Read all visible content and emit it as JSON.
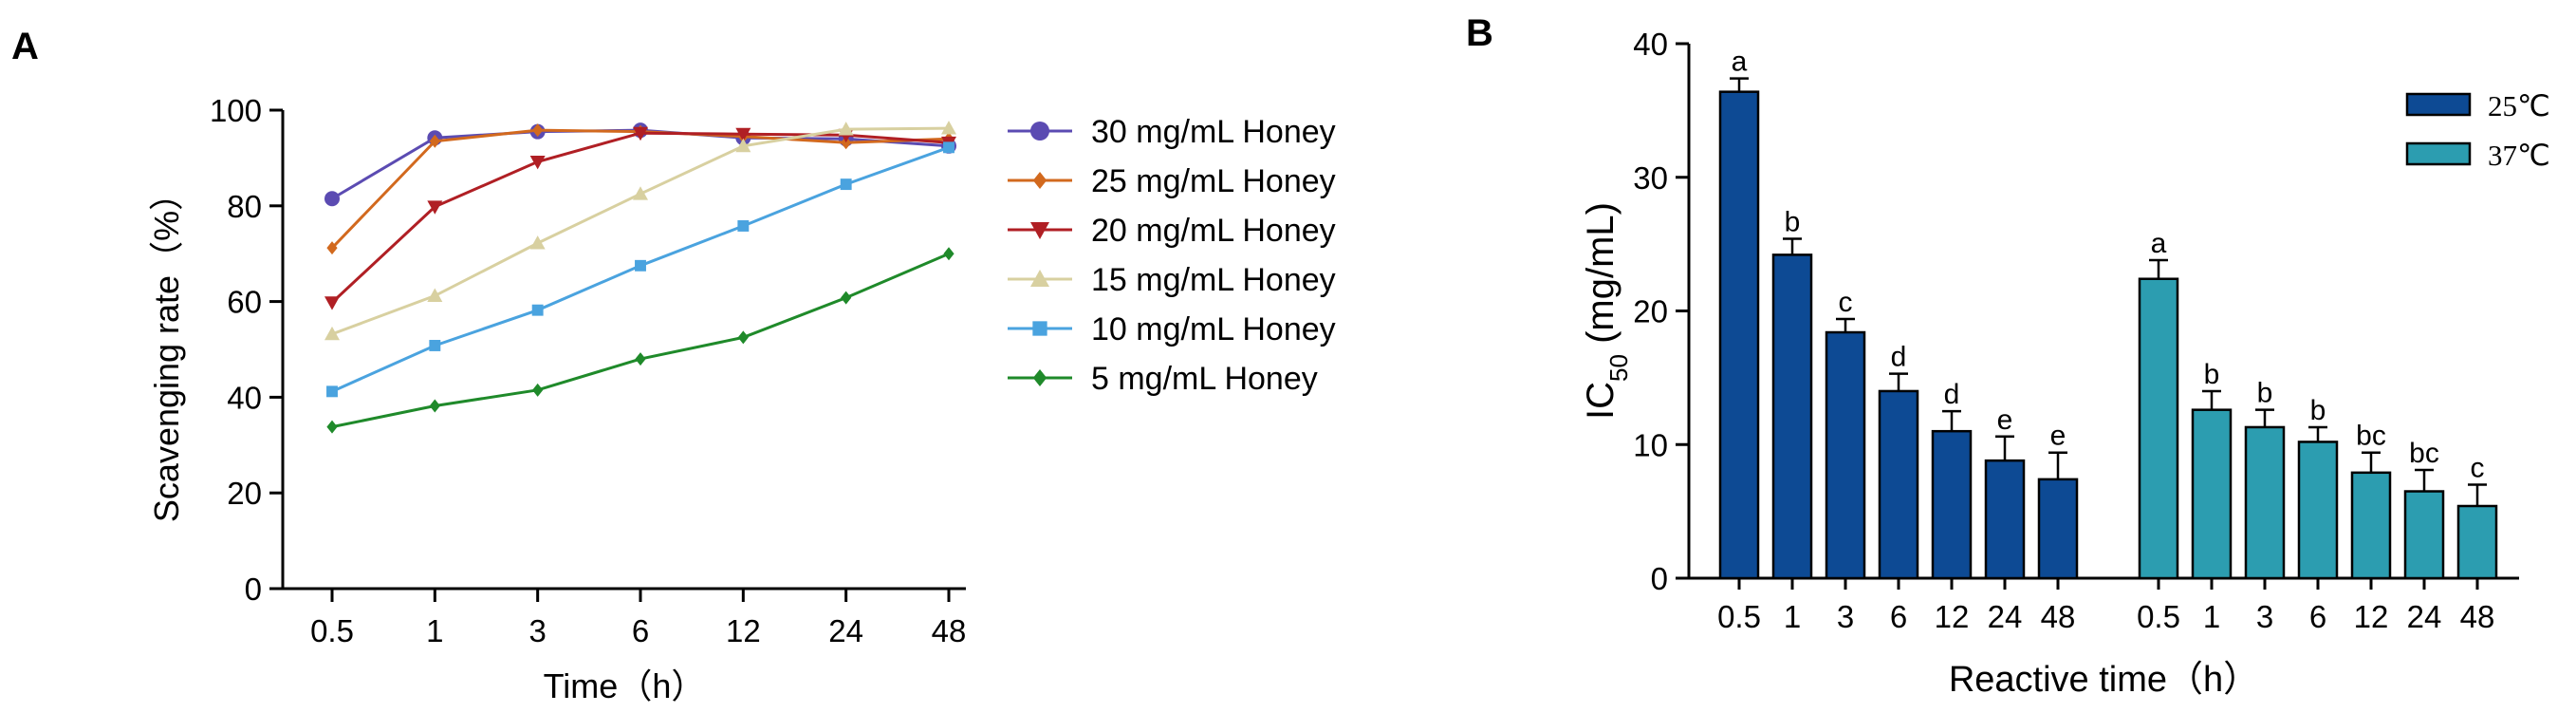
{
  "panel_labels": {
    "a": "A",
    "b": "B"
  },
  "chart_data": [
    {
      "type": "line",
      "panel": "A",
      "xlabel": "Time（h）",
      "ylabel": "Scavenging rate（%）",
      "categories": [
        "0.5",
        "1",
        "3",
        "6",
        "12",
        "24",
        "48"
      ],
      "ylim": [
        0,
        100
      ],
      "yticks": [
        "0",
        "20",
        "40",
        "60",
        "80",
        "100"
      ],
      "legend_position": "right",
      "series": [
        {
          "name": "30 mg/mL Honey",
          "color": "#5b4bb2",
          "marker": "circle",
          "values": [
            81.5,
            94.2,
            95.5,
            95.8,
            94.2,
            94.0,
            92.5
          ]
        },
        {
          "name": "25 mg/mL Honey",
          "color": "#d2691e",
          "marker": "diamond",
          "values": [
            71.2,
            93.5,
            95.8,
            95.5,
            94.5,
            93.2,
            94.0
          ]
        },
        {
          "name": "20 mg/mL Honey",
          "color": "#b01f24",
          "marker": "triangle-down",
          "values": [
            59.8,
            79.8,
            89.2,
            95.2,
            95.0,
            94.8,
            93.2
          ]
        },
        {
          "name": "15 mg/mL Honey",
          "color": "#d8d0a0",
          "marker": "triangle-up",
          "values": [
            53.2,
            61.2,
            72.2,
            82.5,
            92.5,
            96.0,
            96.2
          ]
        },
        {
          "name": "10 mg/mL Honey",
          "color": "#4aa3df",
          "marker": "square",
          "values": [
            41.2,
            50.8,
            58.2,
            67.5,
            75.8,
            84.5,
            92.2
          ]
        },
        {
          "name": "5 mg/mL Honey",
          "color": "#1f8a2a",
          "marker": "diamond",
          "values": [
            33.8,
            38.2,
            41.5,
            48.0,
            52.5,
            60.8,
            70.0
          ]
        }
      ]
    },
    {
      "type": "bar",
      "panel": "B",
      "xlabel": "Reactive time（h）",
      "ylabel_main": "IC",
      "ylabel_sub": "50",
      "ylabel_unit": " (mg/mL)",
      "ylim": [
        0,
        40
      ],
      "yticks": [
        "0",
        "10",
        "20",
        "30",
        "40"
      ],
      "legend_position": "top-right",
      "groups": [
        {
          "name": "25℃",
          "color": "#0d4a94",
          "categories": [
            "0.5",
            "1",
            "3",
            "6",
            "12",
            "24",
            "48"
          ],
          "values": [
            36.4,
            24.2,
            18.4,
            14.0,
            11.0,
            8.8,
            7.4
          ],
          "errors": [
            1.0,
            1.2,
            1.0,
            1.3,
            1.5,
            1.8,
            2.0
          ],
          "letters": [
            "a",
            "b",
            "c",
            "d",
            "d",
            "e",
            "e"
          ]
        },
        {
          "name": "37℃",
          "color": "#2c9db0",
          "categories": [
            "0.5",
            "1",
            "3",
            "6",
            "12",
            "24",
            "48"
          ],
          "values": [
            22.4,
            12.6,
            11.3,
            10.2,
            7.9,
            6.5,
            5.4
          ],
          "errors": [
            1.4,
            1.4,
            1.3,
            1.1,
            1.5,
            1.6,
            1.6
          ],
          "letters": [
            "a",
            "b",
            "b",
            "b",
            "bc",
            "bc",
            "c"
          ]
        }
      ]
    }
  ]
}
